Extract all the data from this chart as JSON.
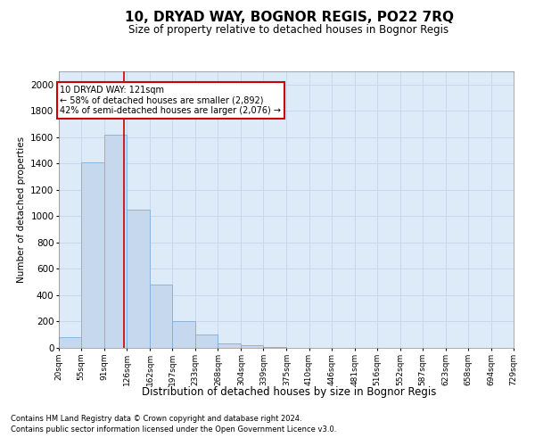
{
  "title": "10, DRYAD WAY, BOGNOR REGIS, PO22 7RQ",
  "subtitle": "Size of property relative to detached houses in Bognor Regis",
  "xlabel": "Distribution of detached houses by size in Bognor Regis",
  "ylabel": "Number of detached properties",
  "footer1": "Contains HM Land Registry data © Crown copyright and database right 2024.",
  "footer2": "Contains public sector information licensed under the Open Government Licence v3.0.",
  "bin_edges": [
    20,
    55,
    91,
    126,
    162,
    197,
    233,
    268,
    304,
    339,
    375,
    410,
    446,
    481,
    516,
    552,
    587,
    623,
    658,
    694,
    729
  ],
  "bar_heights": [
    80,
    1410,
    1620,
    1050,
    480,
    200,
    105,
    35,
    20,
    5,
    3,
    0,
    0,
    0,
    0,
    0,
    0,
    0,
    0,
    0
  ],
  "bar_color": "#c5d8ee",
  "bar_edge_color": "#7aafe0",
  "grid_color": "#c8d8ea",
  "vline_x": 121,
  "vline_color": "#cc0000",
  "annotation_text": "10 DRYAD WAY: 121sqm\n← 58% of detached houses are smaller (2,892)\n42% of semi-detached houses are larger (2,076) →",
  "annotation_box_color": "#ffffff",
  "annotation_box_edge": "#cc0000",
  "ylim": [
    0,
    2100
  ],
  "yticks": [
    0,
    200,
    400,
    600,
    800,
    1000,
    1200,
    1400,
    1600,
    1800,
    2000
  ],
  "tick_labels": [
    "20sqm",
    "55sqm",
    "91sqm",
    "126sqm",
    "162sqm",
    "197sqm",
    "233sqm",
    "268sqm",
    "304sqm",
    "339sqm",
    "375sqm",
    "410sqm",
    "446sqm",
    "481sqm",
    "516sqm",
    "552sqm",
    "587sqm",
    "623sqm",
    "658sqm",
    "694sqm",
    "729sqm"
  ]
}
